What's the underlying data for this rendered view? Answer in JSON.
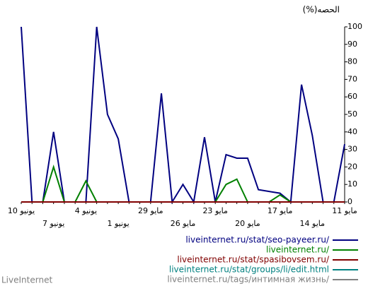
{
  "chart_data": {
    "type": "line",
    "title": "(%)الحصه",
    "categories": [
      "10 يونيو",
      null,
      null,
      "7 يونيو",
      null,
      null,
      "4 يونيو",
      null,
      null,
      "1 يونيو",
      null,
      null,
      "29 مايو",
      null,
      null,
      "26 مايو",
      null,
      null,
      "23 مايو",
      null,
      null,
      "20 مايو",
      null,
      null,
      "17 مايو",
      null,
      null,
      "14 مايو",
      null,
      null,
      "11 مايو"
    ],
    "series": [
      {
        "name": "liveinternet.ru/stat/seo-payeer.ru/",
        "color": "#000080",
        "values": [
          100,
          0,
          0,
          40,
          0,
          0,
          0,
          100,
          50,
          36,
          0,
          0,
          0,
          62,
          0,
          10,
          0,
          37,
          0,
          27,
          25,
          25,
          7,
          6,
          5,
          0,
          67,
          38,
          0,
          0,
          33
        ]
      },
      {
        "name": "liveinternet.ru/",
        "color": "#008000",
        "values": [
          0,
          0,
          0,
          20,
          0,
          0,
          12,
          0,
          0,
          0,
          0,
          0,
          0,
          0,
          0,
          0,
          0,
          0,
          0,
          10,
          13,
          0,
          0,
          0,
          4,
          0,
          0,
          0,
          0,
          0,
          0
        ]
      },
      {
        "name": "liveinternet.ru/stat/spasibovsem.ru/",
        "color": "#800000",
        "values": [
          0,
          0,
          0,
          0,
          0,
          0,
          0,
          0,
          0,
          0,
          0,
          0,
          0,
          0,
          0,
          0,
          0,
          0,
          0,
          0,
          0,
          0,
          0,
          0,
          0,
          0,
          0,
          0,
          0,
          0,
          0
        ]
      },
      {
        "name": "liveinternet.ru/stat/groups/li/edit.html",
        "color": "#008080",
        "values": [
          0,
          0,
          0,
          0,
          0,
          0,
          0,
          0,
          0,
          0,
          0,
          0,
          0,
          0,
          0,
          0,
          0,
          0,
          0,
          0,
          0,
          0,
          0,
          0,
          0,
          0,
          0,
          0,
          0,
          0,
          0
        ]
      },
      {
        "name": "liveinternet.ru/tags/интимная жизнь/",
        "color": "#808080",
        "values": [
          0,
          0,
          0,
          0,
          0,
          0,
          0,
          0,
          0,
          0,
          0,
          0,
          0,
          0,
          0,
          0,
          0,
          0,
          0,
          0,
          0,
          0,
          0,
          0,
          0,
          0,
          0,
          0,
          0,
          0,
          0
        ]
      }
    ],
    "ylim": [
      0,
      100
    ],
    "yticks": [
      0,
      10,
      20,
      30,
      40,
      50,
      60,
      70,
      80,
      90,
      100
    ],
    "footer": "LiveInternet"
  }
}
